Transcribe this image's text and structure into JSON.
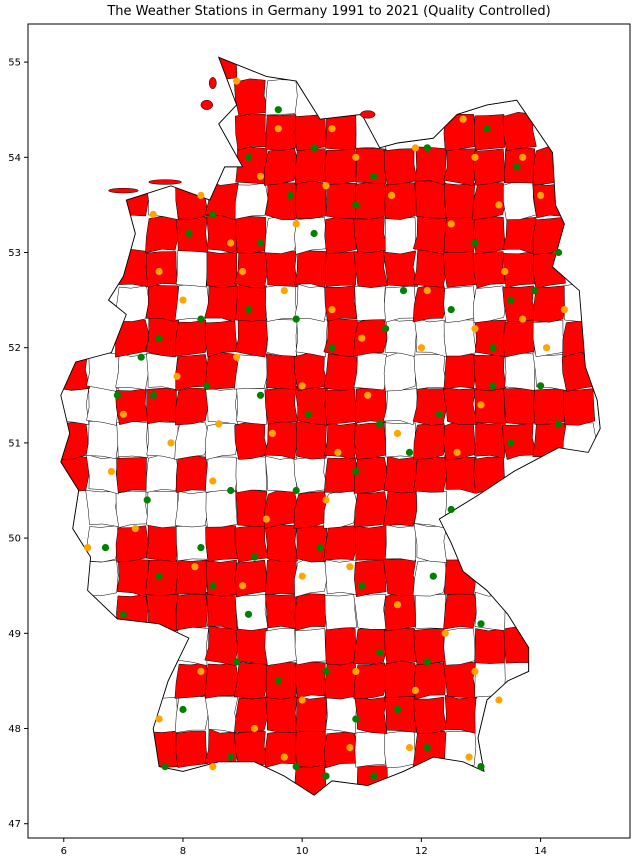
{
  "title": "The Weather Stations in Germany 1991 to 2021 (Quality Controlled)",
  "colors": {
    "filled_district": "#ff0000",
    "empty_district": "#ffffff",
    "border": "#000000",
    "station_primary": "#008000",
    "station_secondary": "#ffa500"
  },
  "chart_data": {
    "type": "scatter",
    "xlim": [
      5.4,
      15.5
    ],
    "ylim": [
      46.85,
      55.4
    ],
    "x_ticks": [
      6,
      8,
      10,
      12,
      14
    ],
    "y_ticks": [
      47,
      48,
      49,
      50,
      51,
      52,
      53,
      54,
      55
    ],
    "x_tick_labels": [
      "6",
      "8",
      "10",
      "12",
      "14"
    ],
    "y_tick_labels": [
      "47",
      "48",
      "49",
      "50",
      "51",
      "52",
      "53",
      "54",
      "55"
    ],
    "grid": false,
    "series": [
      {
        "values": [
          [
            9.6,
            54.5
          ],
          [
            9.1,
            54.0
          ],
          [
            10.2,
            54.1
          ],
          [
            11.2,
            53.8
          ],
          [
            9.8,
            53.6
          ],
          [
            8.5,
            53.4
          ],
          [
            10.9,
            53.5
          ],
          [
            12.1,
            54.1
          ],
          [
            13.1,
            54.3
          ],
          [
            13.6,
            53.9
          ],
          [
            12.9,
            53.1
          ],
          [
            14.3,
            53.0
          ],
          [
            13.5,
            52.5
          ],
          [
            12.5,
            52.4
          ],
          [
            11.4,
            52.2
          ],
          [
            10.5,
            52.0
          ],
          [
            9.9,
            52.3
          ],
          [
            9.1,
            52.4
          ],
          [
            8.3,
            52.3
          ],
          [
            7.6,
            52.1
          ],
          [
            7.3,
            51.9
          ],
          [
            6.9,
            51.5
          ],
          [
            7.5,
            51.5
          ],
          [
            8.4,
            51.6
          ],
          [
            9.3,
            51.5
          ],
          [
            10.1,
            51.3
          ],
          [
            11.3,
            51.2
          ],
          [
            12.3,
            51.3
          ],
          [
            13.5,
            51.0
          ],
          [
            14.3,
            51.2
          ],
          [
            13.2,
            51.6
          ],
          [
            11.8,
            50.9
          ],
          [
            10.9,
            50.7
          ],
          [
            9.9,
            50.5
          ],
          [
            8.8,
            50.5
          ],
          [
            7.4,
            50.4
          ],
          [
            6.7,
            49.9
          ],
          [
            7.6,
            49.6
          ],
          [
            8.3,
            49.9
          ],
          [
            9.2,
            49.8
          ],
          [
            10.3,
            49.9
          ],
          [
            11.0,
            49.5
          ],
          [
            12.2,
            49.6
          ],
          [
            12.5,
            50.3
          ],
          [
            13.0,
            49.1
          ],
          [
            12.1,
            48.7
          ],
          [
            11.3,
            48.8
          ],
          [
            10.4,
            48.6
          ],
          [
            9.6,
            48.5
          ],
          [
            8.9,
            48.7
          ],
          [
            8.0,
            48.2
          ],
          [
            7.7,
            47.6
          ],
          [
            8.8,
            47.7
          ],
          [
            9.9,
            47.6
          ],
          [
            10.4,
            47.5
          ],
          [
            11.2,
            47.5
          ],
          [
            12.1,
            47.8
          ],
          [
            13.0,
            47.6
          ],
          [
            11.6,
            48.2
          ],
          [
            10.9,
            48.1
          ],
          [
            9.1,
            49.2
          ],
          [
            8.5,
            49.5
          ],
          [
            7.0,
            49.2
          ],
          [
            10.2,
            53.2
          ],
          [
            11.7,
            52.6
          ],
          [
            13.9,
            52.6
          ],
          [
            13.2,
            52.0
          ],
          [
            14.0,
            51.6
          ],
          [
            8.1,
            53.2
          ],
          [
            9.3,
            53.1
          ]
        ]
      },
      {
        "values": [
          [
            8.9,
            54.8
          ],
          [
            9.6,
            54.3
          ],
          [
            10.5,
            54.3
          ],
          [
            11.9,
            54.1
          ],
          [
            12.7,
            54.4
          ],
          [
            13.7,
            54.0
          ],
          [
            14.0,
            53.6
          ],
          [
            13.3,
            53.5
          ],
          [
            12.5,
            53.3
          ],
          [
            11.5,
            53.6
          ],
          [
            10.4,
            53.7
          ],
          [
            9.3,
            53.8
          ],
          [
            8.3,
            53.6
          ],
          [
            7.5,
            53.4
          ],
          [
            7.6,
            52.8
          ],
          [
            8.0,
            52.5
          ],
          [
            9.0,
            52.8
          ],
          [
            9.7,
            52.6
          ],
          [
            10.5,
            52.4
          ],
          [
            11.0,
            52.1
          ],
          [
            12.0,
            52.0
          ],
          [
            12.9,
            52.2
          ],
          [
            13.7,
            52.3
          ],
          [
            14.4,
            52.4
          ],
          [
            13.0,
            51.4
          ],
          [
            12.6,
            50.9
          ],
          [
            11.6,
            51.1
          ],
          [
            10.6,
            50.9
          ],
          [
            9.5,
            51.1
          ],
          [
            8.6,
            51.2
          ],
          [
            7.8,
            51.0
          ],
          [
            7.0,
            51.3
          ],
          [
            6.4,
            49.9
          ],
          [
            7.2,
            50.1
          ],
          [
            8.2,
            49.7
          ],
          [
            9.0,
            49.5
          ],
          [
            10.0,
            49.6
          ],
          [
            10.8,
            49.7
          ],
          [
            11.6,
            49.3
          ],
          [
            12.4,
            49.0
          ],
          [
            12.9,
            48.6
          ],
          [
            11.9,
            48.4
          ],
          [
            10.9,
            48.6
          ],
          [
            10.0,
            48.3
          ],
          [
            9.2,
            48.0
          ],
          [
            8.3,
            48.6
          ],
          [
            7.6,
            48.1
          ],
          [
            8.5,
            47.6
          ],
          [
            9.7,
            47.7
          ],
          [
            10.8,
            47.8
          ],
          [
            11.8,
            47.8
          ],
          [
            12.8,
            47.7
          ],
          [
            13.3,
            48.3
          ],
          [
            10.4,
            50.4
          ],
          [
            9.4,
            50.2
          ],
          [
            8.5,
            50.6
          ],
          [
            6.8,
            50.7
          ],
          [
            7.9,
            51.7
          ],
          [
            8.9,
            51.9
          ],
          [
            10.0,
            51.6
          ],
          [
            11.1,
            51.5
          ],
          [
            12.1,
            52.6
          ],
          [
            13.4,
            52.8
          ],
          [
            14.1,
            52.0
          ],
          [
            9.9,
            53.3
          ],
          [
            8.8,
            53.1
          ],
          [
            12.9,
            54.0
          ],
          [
            10.9,
            54.0
          ]
        ]
      }
    ]
  }
}
